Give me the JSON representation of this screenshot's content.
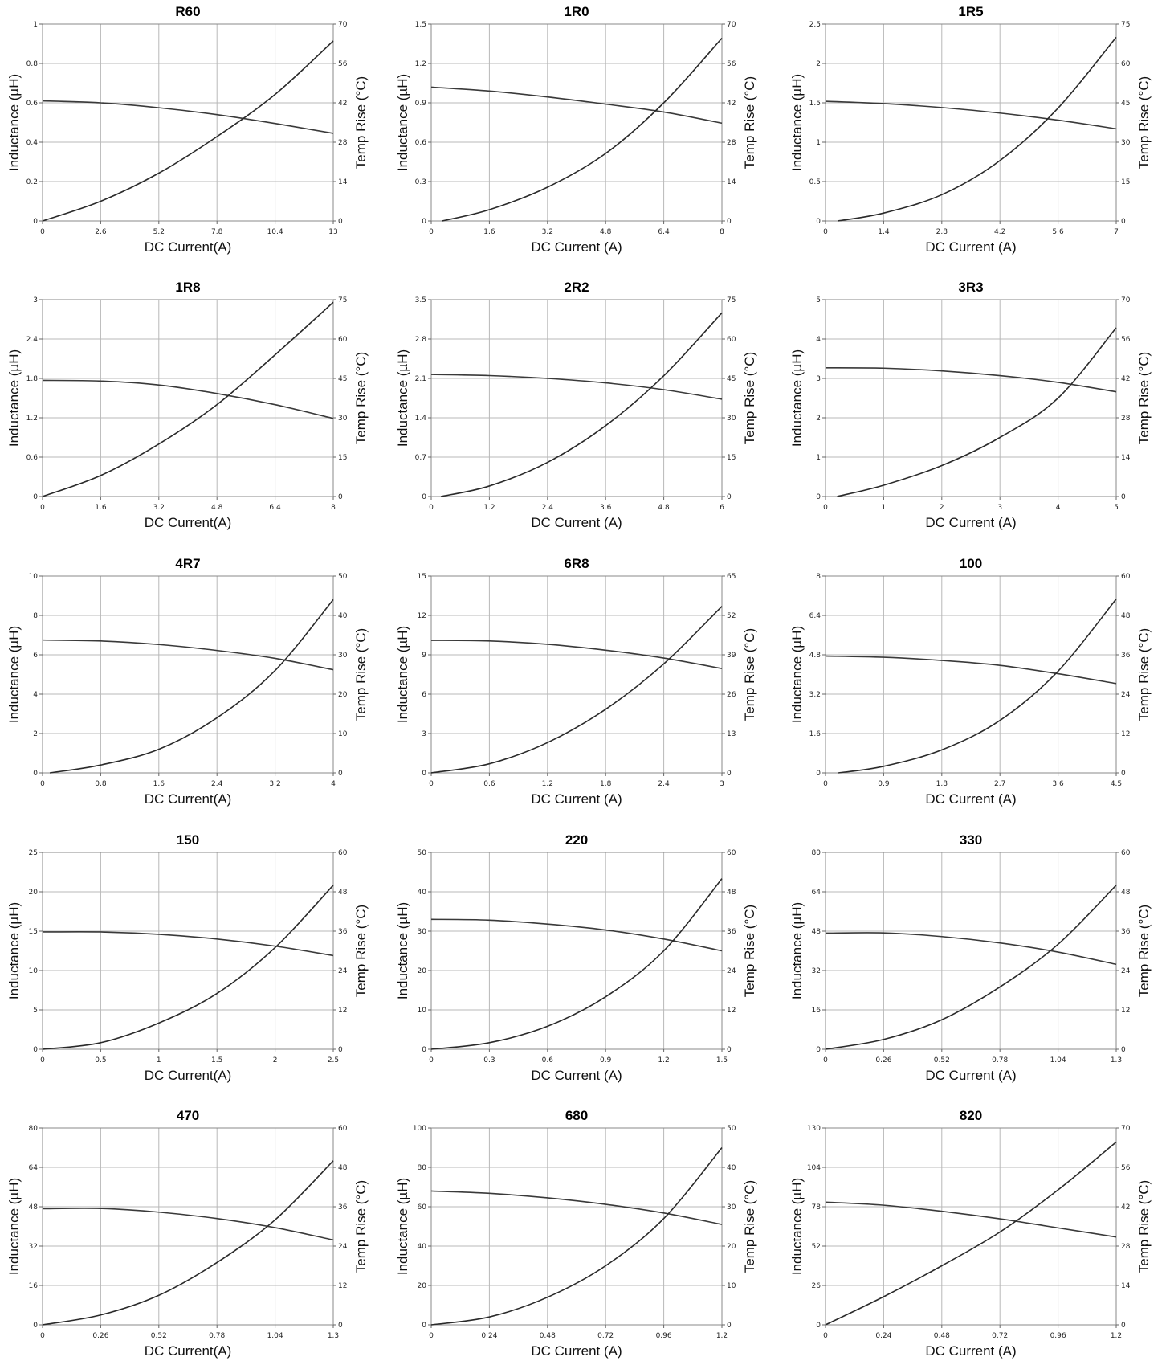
{
  "chart_data": [
    {
      "type": "line",
      "title": "R60",
      "xlabel": "DC Current(A)",
      "ylabel": "Inductance (µH)",
      "y2label": "Temp Rise (°C)",
      "xticks": [
        "0",
        "2.6",
        "5.2",
        "7.8",
        "10.4",
        "13"
      ],
      "xlim": [
        0,
        13
      ],
      "yticks": [
        "0",
        "0.2",
        "0.4",
        "0.6",
        "0.8",
        "1"
      ],
      "ylim": [
        0,
        1
      ],
      "y2ticks": [
        "0",
        "14",
        "28",
        "42",
        "56",
        "70"
      ],
      "y2lim": [
        0,
        70
      ],
      "series": [
        {
          "axis": "left",
          "x": [
            0,
            2.6,
            5.2,
            7.8,
            10.4,
            13
          ],
          "y": [
            0.61,
            0.6,
            0.575,
            0.54,
            0.495,
            0.445
          ]
        },
        {
          "axis": "right",
          "x": [
            0,
            2.6,
            5.2,
            7.8,
            10.4,
            13
          ],
          "y": [
            0,
            7,
            17,
            30,
            45,
            64
          ]
        }
      ]
    },
    {
      "type": "line",
      "title": "1R0",
      "xlabel": "DC Current (A)",
      "ylabel": "Inductance (µH)",
      "y2label": "Temp Rise (°C)",
      "xticks": [
        "0",
        "1.6",
        "3.2",
        "4.8",
        "6.4",
        "8"
      ],
      "xlim": [
        0,
        8
      ],
      "yticks": [
        "0",
        "0.3",
        "0.6",
        "0.9",
        "1.2",
        "1.5"
      ],
      "ylim": [
        0,
        1.5
      ],
      "y2ticks": [
        "0",
        "14",
        "28",
        "42",
        "56",
        "70"
      ],
      "y2lim": [
        0,
        70
      ],
      "series": [
        {
          "axis": "left",
          "x": [
            0,
            1.6,
            3.2,
            4.8,
            6.4,
            8
          ],
          "y": [
            1.02,
            0.99,
            0.945,
            0.89,
            0.83,
            0.745
          ]
        },
        {
          "axis": "right",
          "x": [
            0.3,
            1.6,
            3.2,
            4.8,
            6.4,
            8
          ],
          "y": [
            0,
            4,
            12,
            24,
            42,
            65
          ]
        }
      ]
    },
    {
      "type": "line",
      "title": "1R5",
      "xlabel": "DC Current (A)",
      "ylabel": "Inductance (µH)",
      "y2label": "Temp Rise (°C)",
      "xticks": [
        "0",
        "1.4",
        "2.8",
        "4.2",
        "5.6",
        "7"
      ],
      "xlim": [
        0,
        7
      ],
      "yticks": [
        "0",
        "0.5",
        "1",
        "1.5",
        "2",
        "2.5"
      ],
      "ylim": [
        0,
        2.5
      ],
      "y2ticks": [
        "0",
        "15",
        "30",
        "45",
        "60",
        "75"
      ],
      "y2lim": [
        0,
        75
      ],
      "series": [
        {
          "axis": "left",
          "x": [
            0,
            1.4,
            2.8,
            4.2,
            5.6,
            7
          ],
          "y": [
            1.52,
            1.49,
            1.44,
            1.37,
            1.28,
            1.17
          ]
        },
        {
          "axis": "right",
          "x": [
            0.3,
            1.4,
            2.8,
            4.2,
            5.6,
            7
          ],
          "y": [
            0,
            3,
            10,
            23,
            43,
            70
          ]
        }
      ]
    },
    {
      "type": "line",
      "title": "1R8",
      "xlabel": "DC Current(A)",
      "ylabel": "Inductance (µH)",
      "y2label": "Temp Rise (°C)",
      "xticks": [
        "0",
        "1.6",
        "3.2",
        "4.8",
        "6.4",
        "8"
      ],
      "xlim": [
        0,
        8
      ],
      "yticks": [
        "0",
        "0.6",
        "1.2",
        "1.8",
        "2.4",
        "3"
      ],
      "ylim": [
        0,
        3
      ],
      "y2ticks": [
        "0",
        "15",
        "30",
        "45",
        "60",
        "75"
      ],
      "y2lim": [
        0,
        75
      ],
      "series": [
        {
          "axis": "left",
          "x": [
            0,
            1.6,
            3.2,
            4.8,
            6.4,
            8
          ],
          "y": [
            1.77,
            1.76,
            1.7,
            1.57,
            1.4,
            1.19
          ]
        },
        {
          "axis": "right",
          "x": [
            0,
            1.6,
            3.2,
            4.8,
            6.4,
            8
          ],
          "y": [
            0,
            8,
            20,
            35,
            54,
            74
          ]
        }
      ]
    },
    {
      "type": "line",
      "title": "2R2",
      "xlabel": "DC Current (A)",
      "ylabel": "Inductance (µH)",
      "y2label": "Temp Rise (°C)",
      "xticks": [
        "0",
        "1.2",
        "2.4",
        "3.6",
        "4.8",
        "6"
      ],
      "xlim": [
        0,
        6
      ],
      "yticks": [
        "0",
        "0.7",
        "1.4",
        "2.1",
        "2.8",
        "3.5"
      ],
      "ylim": [
        0,
        3.5
      ],
      "y2ticks": [
        "0",
        "15",
        "30",
        "45",
        "60",
        "75"
      ],
      "y2lim": [
        0,
        75
      ],
      "series": [
        {
          "axis": "left",
          "x": [
            0,
            1.2,
            2.4,
            3.6,
            4.8,
            6
          ],
          "y": [
            2.17,
            2.15,
            2.1,
            2.02,
            1.9,
            1.73
          ]
        },
        {
          "axis": "right",
          "x": [
            0.2,
            1.2,
            2.4,
            3.6,
            4.8,
            6
          ],
          "y": [
            0,
            4,
            13,
            27,
            46,
            70
          ]
        }
      ]
    },
    {
      "type": "line",
      "title": "3R3",
      "xlabel": "DC Current (A)",
      "ylabel": "Inductance (µH)",
      "y2label": "Temp Rise (°C)",
      "xticks": [
        "0",
        "1",
        "2",
        "3",
        "4",
        "5"
      ],
      "xlim": [
        0,
        5
      ],
      "yticks": [
        "0",
        "1",
        "2",
        "3",
        "4",
        "5"
      ],
      "ylim": [
        0,
        5
      ],
      "y2ticks": [
        "0",
        "14",
        "28",
        "42",
        "56",
        "70"
      ],
      "y2lim": [
        0,
        70
      ],
      "series": [
        {
          "axis": "left",
          "x": [
            0,
            1,
            2,
            3,
            4,
            5
          ],
          "y": [
            3.27,
            3.26,
            3.19,
            3.07,
            2.9,
            2.66
          ]
        },
        {
          "axis": "right",
          "x": [
            0.2,
            1,
            2,
            3,
            4,
            5
          ],
          "y": [
            0,
            4,
            11,
            21,
            35,
            60
          ]
        }
      ]
    },
    {
      "type": "line",
      "title": "4R7",
      "xlabel": "DC Current(A)",
      "ylabel": "Inductance (µH)",
      "y2label": "Temp Rise (°C)",
      "xticks": [
        "0",
        "0.8",
        "1.6",
        "2.4",
        "3.2",
        "4"
      ],
      "xlim": [
        0,
        4
      ],
      "yticks": [
        "0",
        "2",
        "4",
        "6",
        "8",
        "10"
      ],
      "ylim": [
        0,
        10
      ],
      "y2ticks": [
        "0",
        "10",
        "20",
        "30",
        "40",
        "50"
      ],
      "y2lim": [
        0,
        50
      ],
      "series": [
        {
          "axis": "left",
          "x": [
            0,
            0.8,
            1.6,
            2.4,
            3.2,
            4
          ],
          "y": [
            6.75,
            6.7,
            6.52,
            6.22,
            5.82,
            5.24
          ]
        },
        {
          "axis": "right",
          "x": [
            0.1,
            0.8,
            1.6,
            2.4,
            3.2,
            4
          ],
          "y": [
            0,
            2,
            6,
            14,
            26,
            44
          ]
        }
      ]
    },
    {
      "type": "line",
      "title": "6R8",
      "xlabel": "DC Current (A)",
      "ylabel": "Inductance (µH)",
      "y2label": "Temp Rise (°C)",
      "xticks": [
        "0",
        "0.6",
        "1.2",
        "1.8",
        "2.4",
        "3"
      ],
      "xlim": [
        0,
        3
      ],
      "yticks": [
        "0",
        "3",
        "6",
        "9",
        "12",
        "15"
      ],
      "ylim": [
        0,
        15
      ],
      "y2ticks": [
        "0",
        "13",
        "26",
        "39",
        "52",
        "65"
      ],
      "y2lim": [
        0,
        65
      ],
      "series": [
        {
          "axis": "left",
          "x": [
            0,
            0.6,
            1.2,
            1.8,
            2.4,
            3
          ],
          "y": [
            10.1,
            10.05,
            9.8,
            9.35,
            8.75,
            7.95
          ]
        },
        {
          "axis": "right",
          "x": [
            0,
            0.6,
            1.2,
            1.8,
            2.4,
            3
          ],
          "y": [
            0,
            3,
            10,
            21,
            36,
            55
          ]
        }
      ]
    },
    {
      "type": "line",
      "title": "100",
      "xlabel": "DC Current (A)",
      "ylabel": "Inductance (µH)",
      "y2label": "Temp Rise (°C)",
      "xticks": [
        "0",
        "0.9",
        "1.8",
        "2.7",
        "3.6",
        "4.5"
      ],
      "xlim": [
        0,
        4.5
      ],
      "yticks": [
        "0",
        "1.6",
        "3.2",
        "4.8",
        "6.4",
        "8"
      ],
      "ylim": [
        0,
        8
      ],
      "y2ticks": [
        "0",
        "12",
        "24",
        "36",
        "48",
        "60"
      ],
      "y2lim": [
        0,
        60
      ],
      "series": [
        {
          "axis": "left",
          "x": [
            0,
            0.9,
            1.8,
            2.7,
            3.6,
            4.5
          ],
          "y": [
            4.75,
            4.7,
            4.57,
            4.37,
            4.03,
            3.63
          ]
        },
        {
          "axis": "right",
          "x": [
            0.2,
            0.9,
            1.8,
            2.7,
            3.6,
            4.5
          ],
          "y": [
            0,
            2,
            7,
            16,
            31,
            53
          ]
        }
      ]
    },
    {
      "type": "line",
      "title": "150",
      "xlabel": "DC Current(A)",
      "ylabel": "Inductance (µH)",
      "y2label": "Temp Rise (°C)",
      "xticks": [
        "0",
        "0.5",
        "1",
        "1.5",
        "2",
        "2.5"
      ],
      "xlim": [
        0,
        2.5
      ],
      "yticks": [
        "0",
        "5",
        "10",
        "15",
        "20",
        "25"
      ],
      "ylim": [
        0,
        25
      ],
      "y2ticks": [
        "0",
        "12",
        "24",
        "36",
        "48",
        "60"
      ],
      "y2lim": [
        0,
        60
      ],
      "series": [
        {
          "axis": "left",
          "x": [
            0,
            0.5,
            1,
            1.5,
            2,
            2.5
          ],
          "y": [
            14.9,
            14.9,
            14.6,
            14.0,
            13.1,
            11.9
          ]
        },
        {
          "axis": "right",
          "x": [
            0,
            0.5,
            1,
            1.5,
            2,
            2.5
          ],
          "y": [
            0,
            2,
            8,
            17,
            31,
            50
          ]
        }
      ]
    },
    {
      "type": "line",
      "title": "220",
      "xlabel": "DC Current (A)",
      "ylabel": "Inductance (µH)",
      "y2label": "Temp Rise (°C)",
      "xticks": [
        "0",
        "0.3",
        "0.6",
        "0.9",
        "1.2",
        "1.5"
      ],
      "xlim": [
        0,
        1.5
      ],
      "yticks": [
        "0",
        "10",
        "20",
        "30",
        "40",
        "50"
      ],
      "ylim": [
        0,
        50
      ],
      "y2ticks": [
        "0",
        "12",
        "24",
        "36",
        "48",
        "60"
      ],
      "y2lim": [
        0,
        60
      ],
      "series": [
        {
          "axis": "left",
          "x": [
            0,
            0.3,
            0.6,
            0.9,
            1.2,
            1.5
          ],
          "y": [
            33,
            32.8,
            31.8,
            30.3,
            28.0,
            25.0
          ]
        },
        {
          "axis": "right",
          "x": [
            0,
            0.3,
            0.6,
            0.9,
            1.2,
            1.5
          ],
          "y": [
            0,
            2,
            7,
            16,
            30,
            52
          ]
        }
      ]
    },
    {
      "type": "line",
      "title": "330",
      "xlabel": "DC Current (A)",
      "ylabel": "Inductance (µH)",
      "y2label": "Temp Rise (°C)",
      "xticks": [
        "0",
        "0.26",
        "0.52",
        "0.78",
        "1.04",
        "1.3"
      ],
      "xlim": [
        0,
        1.3
      ],
      "yticks": [
        "0",
        "16",
        "32",
        "48",
        "64",
        "80"
      ],
      "ylim": [
        0,
        80
      ],
      "y2ticks": [
        "0",
        "12",
        "24",
        "36",
        "48",
        "60"
      ],
      "y2lim": [
        0,
        60
      ],
      "series": [
        {
          "axis": "left",
          "x": [
            0,
            0.26,
            0.52,
            0.78,
            1.04,
            1.3
          ],
          "y": [
            47.2,
            47.3,
            45.8,
            43.2,
            39.5,
            34.5
          ]
        },
        {
          "axis": "right",
          "x": [
            0,
            0.26,
            0.52,
            0.78,
            1.04,
            1.3
          ],
          "y": [
            0,
            3,
            9,
            19,
            32,
            50
          ]
        }
      ]
    },
    {
      "type": "line",
      "title": "470",
      "xlabel": "DC Current(A)",
      "ylabel": "Inductance (µH)",
      "y2label": "Temp Rise (°C)",
      "xticks": [
        "0",
        "0.26",
        "0.52",
        "0.78",
        "1.04",
        "1.3"
      ],
      "xlim": [
        0,
        1.3
      ],
      "yticks": [
        "0",
        "16",
        "32",
        "48",
        "64",
        "80"
      ],
      "ylim": [
        0,
        80
      ],
      "y2ticks": [
        "0",
        "12",
        "24",
        "36",
        "48",
        "60"
      ],
      "y2lim": [
        0,
        60
      ],
      "series": [
        {
          "axis": "left",
          "x": [
            0,
            0.26,
            0.52,
            0.78,
            1.04,
            1.3
          ],
          "y": [
            47.2,
            47.3,
            45.8,
            43.2,
            39.5,
            34.5
          ]
        },
        {
          "axis": "right",
          "x": [
            0,
            0.26,
            0.52,
            0.78,
            1.04,
            1.3
          ],
          "y": [
            0,
            3,
            9,
            19,
            32,
            50
          ]
        }
      ]
    },
    {
      "type": "line",
      "title": "680",
      "xlabel": "DC Current (A)",
      "ylabel": "Inductance (µH)",
      "y2label": "Temp Rise (°C)",
      "xticks": [
        "0",
        "0.24",
        "0.48",
        "0.72",
        "0.96",
        "1.2"
      ],
      "xlim": [
        0,
        1.2
      ],
      "yticks": [
        "0",
        "20",
        "40",
        "60",
        "80",
        "100"
      ],
      "ylim": [
        0,
        100
      ],
      "y2ticks": [
        "0",
        "10",
        "20",
        "30",
        "40",
        "50"
      ],
      "y2lim": [
        0,
        50
      ],
      "series": [
        {
          "axis": "left",
          "x": [
            0,
            0.24,
            0.48,
            0.72,
            0.96,
            1.2
          ],
          "y": [
            68.0,
            66.8,
            64.5,
            61.2,
            56.8,
            51.0
          ]
        },
        {
          "axis": "right",
          "x": [
            0,
            0.24,
            0.48,
            0.72,
            0.96,
            1.2
          ],
          "y": [
            0,
            2,
            7,
            15,
            27,
            45
          ]
        }
      ]
    },
    {
      "type": "line",
      "title": "820",
      "xlabel": "DC Current (A)",
      "ylabel": "Inductance (µH)",
      "y2label": "Temp Rise (°C)",
      "xticks": [
        "0",
        "0.24",
        "0.48",
        "0.72",
        "0.96",
        "1.2"
      ],
      "xlim": [
        0,
        1.2
      ],
      "yticks": [
        "0",
        "26",
        "52",
        "78",
        "104",
        "130"
      ],
      "ylim": [
        0,
        130
      ],
      "y2ticks": [
        "0",
        "14",
        "28",
        "42",
        "56",
        "70"
      ],
      "y2lim": [
        0,
        70
      ],
      "series": [
        {
          "axis": "left",
          "x": [
            0,
            0.24,
            0.48,
            0.72,
            0.96,
            1.2
          ],
          "y": [
            81,
            79,
            75,
            70,
            64,
            58
          ]
        },
        {
          "axis": "right",
          "x": [
            0,
            0.24,
            0.48,
            0.72,
            0.96,
            1.2
          ],
          "y": [
            0,
            10,
            21,
            33,
            48,
            65
          ]
        }
      ]
    }
  ]
}
